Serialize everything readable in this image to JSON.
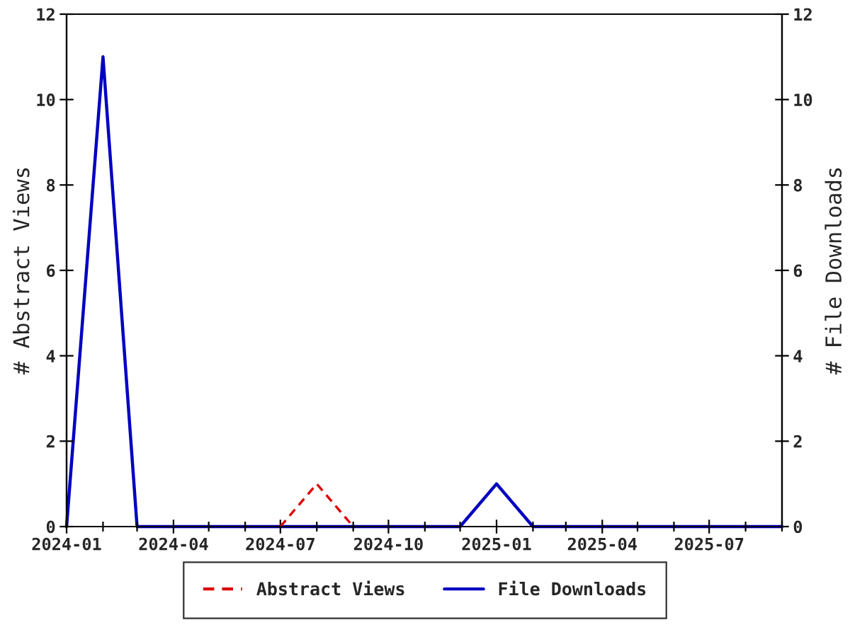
{
  "chart_data": {
    "type": "line",
    "x": [
      "2024-01",
      "2024-02",
      "2024-03",
      "2024-04",
      "2024-05",
      "2024-06",
      "2024-07",
      "2024-08",
      "2024-09",
      "2024-10",
      "2024-11",
      "2024-12",
      "2025-01",
      "2025-02",
      "2025-03",
      "2025-04",
      "2025-05",
      "2025-06",
      "2025-07",
      "2025-08",
      "2025-09"
    ],
    "series": [
      {
        "name": "Abstract Views",
        "color": "#dd0000",
        "line_style": "dashed",
        "values": [
          null,
          null,
          null,
          null,
          null,
          null,
          0,
          1,
          0,
          null,
          null,
          null,
          null,
          null,
          null,
          null,
          null,
          null,
          null,
          null,
          null
        ]
      },
      {
        "name": "File Downloads",
        "color": "#0000c0",
        "line_style": "solid",
        "axis": "y2",
        "values": [
          0,
          11,
          0,
          0,
          0,
          0,
          0,
          0,
          0,
          0,
          0,
          0,
          1,
          0,
          0,
          0,
          0,
          0,
          0,
          0,
          0
        ]
      }
    ],
    "ylabel": "# Abstract Views",
    "y2label": "# File Downloads",
    "xlim": [
      "2024-01",
      "2025-09"
    ],
    "xticks": [
      "2024-01",
      {
        "value": "2024-02",
        "label": null
      },
      {
        "value": "2024-03",
        "label": null
      },
      "2024-04",
      {
        "value": "2024-05",
        "label": null
      },
      {
        "value": "2024-06",
        "label": null
      },
      "2024-07",
      {
        "value": "2024-08",
        "label": null
      },
      {
        "value": "2024-09",
        "label": null
      },
      "2024-10",
      {
        "value": "2024-11",
        "label": null
      },
      {
        "value": "2024-12",
        "label": null
      },
      "2025-01",
      {
        "value": "2025-02",
        "label": null
      },
      {
        "value": "2025-03",
        "label": null
      },
      "2025-04",
      {
        "value": "2025-05",
        "label": null
      },
      {
        "value": "2025-06",
        "label": null
      },
      "2025-07",
      {
        "value": "2025-08",
        "label": null
      },
      {
        "value": "2025-09",
        "label": null
      }
    ],
    "ylim": [
      0,
      12
    ],
    "yticks": [
      0,
      2,
      4,
      6,
      8,
      10,
      12
    ],
    "y2lim": [
      0,
      12
    ],
    "y2ticks": [
      0,
      2,
      4,
      6,
      8,
      10,
      12
    ],
    "grid": false,
    "legend": "bottom",
    "marker": "none"
  }
}
